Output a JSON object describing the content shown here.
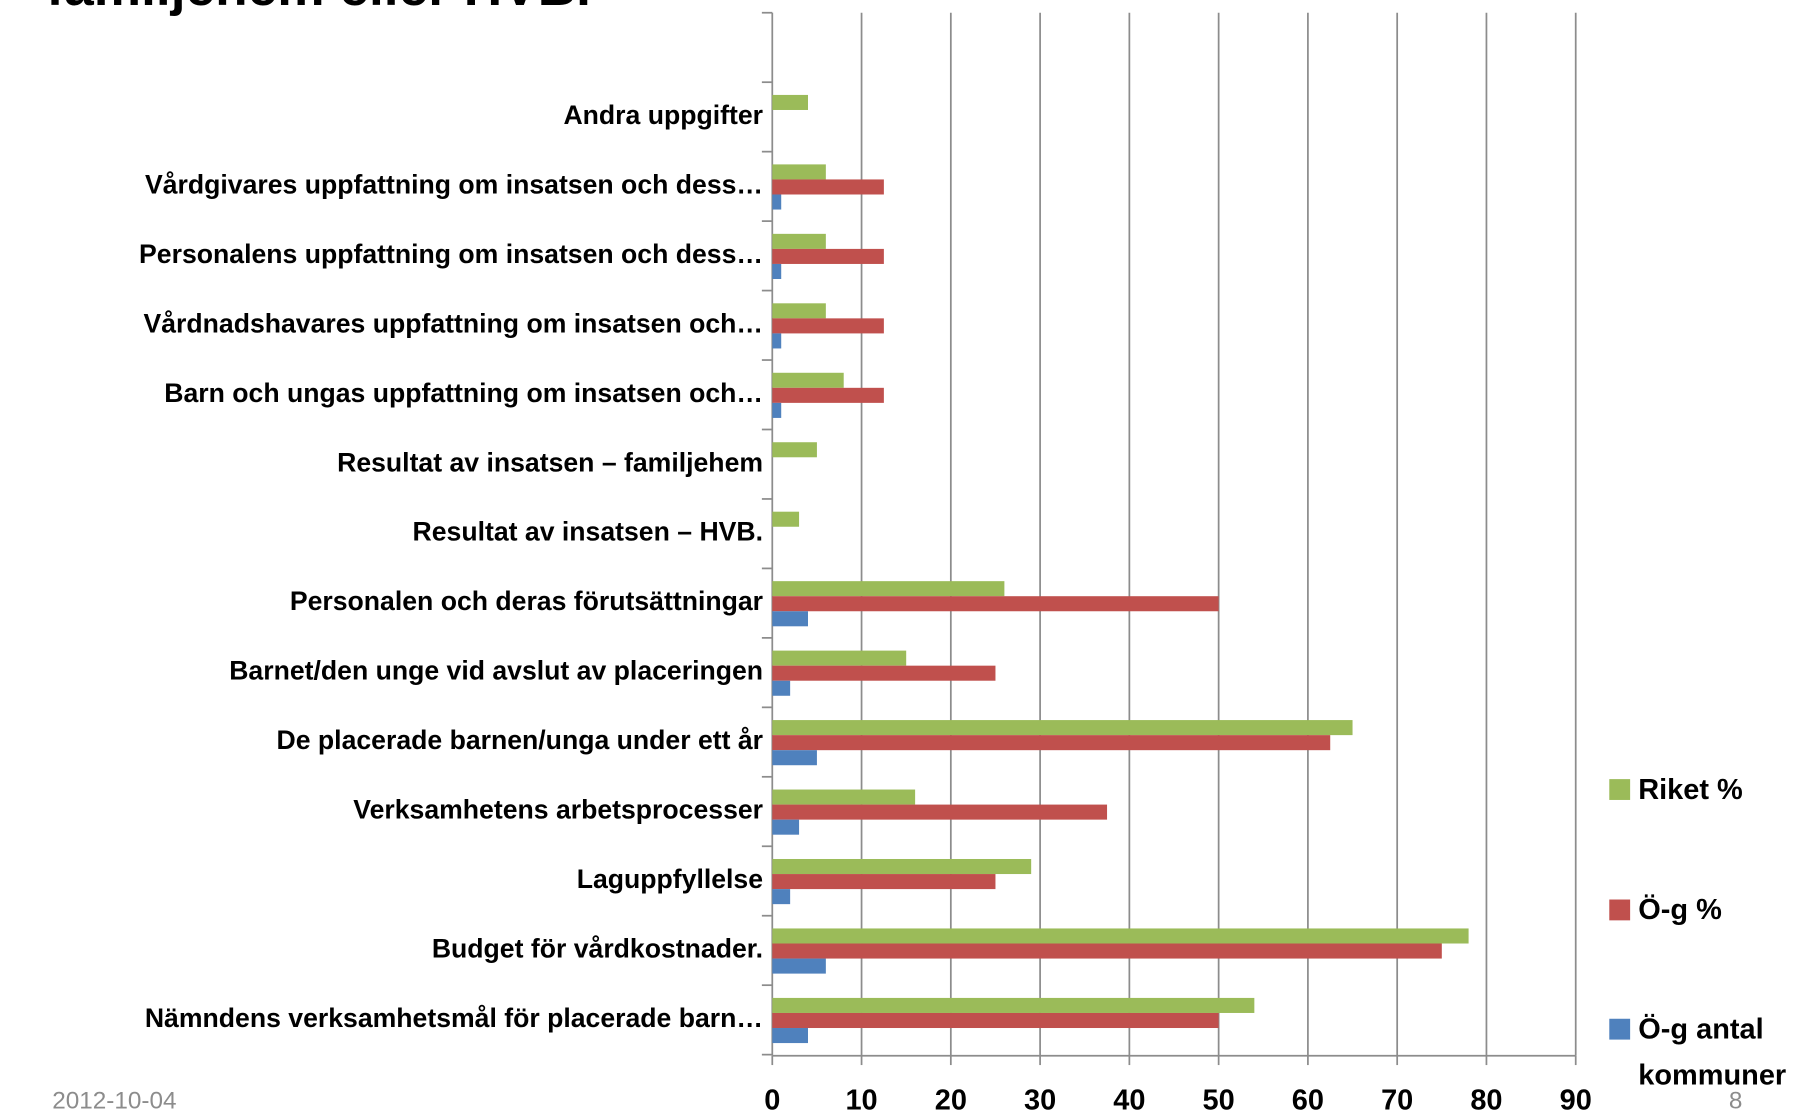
{
  "chart_data": {
    "type": "bar",
    "orientation": "horizontal",
    "title": "familjehem eller HVB.",
    "categories": [
      "Andra uppgifter",
      "Vårdgivares uppfattning om insatsen och dess…",
      "Personalens uppfattning om insatsen och dess…",
      "Vårdnadshavares uppfattning om insatsen och…",
      "Barn och ungas uppfattning om insatsen och…",
      "Resultat av insatsen – familjehem",
      "Resultat av insatsen – HVB.",
      "Personalen och deras förutsättningar",
      "Barnet/den unge vid avslut av placeringen",
      "De placerade barnen/unga under ett år",
      "Verksamhetens arbetsprocesser",
      "Laguppfyllelse",
      "Budget för vårdkostnader.",
      "Nämndens verksamhetsmål för placerade barn…"
    ],
    "series": [
      {
        "name": "Riket %",
        "color": "#9bbb59",
        "values": [
          4,
          6,
          6,
          6,
          8,
          5,
          3,
          26,
          15,
          65,
          16,
          29,
          78,
          54
        ]
      },
      {
        "name": "Ö-g %",
        "color": "#c0504d",
        "values": [
          null,
          12.5,
          12.5,
          12.5,
          12.5,
          null,
          null,
          50,
          25,
          62.5,
          37.5,
          25,
          75,
          50
        ]
      },
      {
        "name": "Ö-g antal kommuner",
        "color": "#4f81bd",
        "values": [
          null,
          1,
          1,
          1,
          1,
          null,
          null,
          4,
          2,
          5,
          3,
          2,
          6,
          4
        ]
      }
    ],
    "xlim": [
      0,
      90
    ],
    "xticks": [
      0,
      10,
      20,
      30,
      40,
      50,
      60,
      70,
      80,
      90
    ],
    "grid": true,
    "legend": "right",
    "date": "2012-10-04",
    "page_number": "8"
  }
}
